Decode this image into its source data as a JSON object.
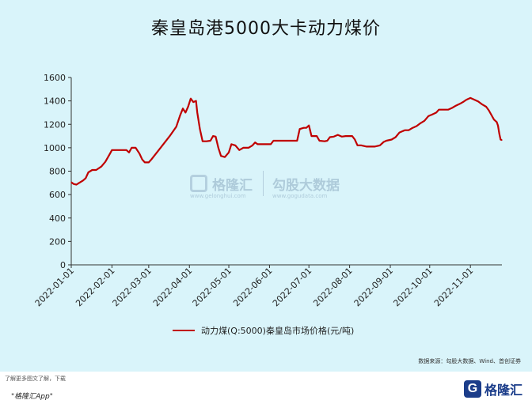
{
  "title": "秦皇岛港5000大卡动力煤价",
  "legend_label": "动力煤(Q:5000)秦皇岛市场价格(元/吨)",
  "source": "数据来源：勾股大数据、Wind、首创证券",
  "footnote": "了解更多图文了解，下载",
  "app_label": "\"格隆汇App\"",
  "brand": "格隆汇",
  "watermark": {
    "left_name": "格隆汇",
    "left_url": "www.gelonghui.com",
    "right_name": "勾股大数据",
    "right_url": "www.gogudata.com"
  },
  "colors": {
    "panel": "#d9f4fa",
    "line": "#c00000"
  },
  "chart_data": {
    "type": "line",
    "title": "秦皇岛港5000大卡动力煤价",
    "xlabel": "",
    "ylabel": "",
    "ylim": [
      0,
      1600
    ],
    "yticks": [
      0,
      200,
      400,
      600,
      800,
      1000,
      1200,
      1400,
      1600
    ],
    "xlim": [
      "2022-01-01",
      "2022-11-25"
    ],
    "xticks": [
      "2022-01-01",
      "2022-02-01",
      "2022-03-01",
      "2022-04-01",
      "2022-05-01",
      "2022-06-01",
      "2022-07-01",
      "2022-08-01",
      "2022-09-01",
      "2022-10-01",
      "2022-11-01"
    ],
    "grid": false,
    "legend_position": "bottom",
    "series": [
      {
        "name": "动力煤(Q:5000)秦皇岛市场价格(元/吨)",
        "points": [
          [
            "2022-01-01",
            705
          ],
          [
            "2022-01-03",
            690
          ],
          [
            "2022-01-05",
            685
          ],
          [
            "2022-01-07",
            700
          ],
          [
            "2022-01-10",
            720
          ],
          [
            "2022-01-12",
            740
          ],
          [
            "2022-01-14",
            790
          ],
          [
            "2022-01-17",
            810
          ],
          [
            "2022-01-20",
            810
          ],
          [
            "2022-01-24",
            840
          ],
          [
            "2022-01-27",
            880
          ],
          [
            "2022-01-30",
            940
          ],
          [
            "2022-02-01",
            980
          ],
          [
            "2022-02-05",
            980
          ],
          [
            "2022-02-09",
            980
          ],
          [
            "2022-02-12",
            980
          ],
          [
            "2022-02-14",
            960
          ],
          [
            "2022-02-16",
            1000
          ],
          [
            "2022-02-19",
            1000
          ],
          [
            "2022-02-22",
            950
          ],
          [
            "2022-02-24",
            900
          ],
          [
            "2022-02-26",
            875
          ],
          [
            "2022-03-01",
            875
          ],
          [
            "2022-03-03",
            900
          ],
          [
            "2022-03-10",
            1000
          ],
          [
            "2022-03-17",
            1100
          ],
          [
            "2022-03-22",
            1180
          ],
          [
            "2022-03-25",
            1280
          ],
          [
            "2022-03-27",
            1335
          ],
          [
            "2022-03-29",
            1300
          ],
          [
            "2022-03-31",
            1350
          ],
          [
            "2022-04-02",
            1420
          ],
          [
            "2022-04-04",
            1390
          ],
          [
            "2022-04-06",
            1400
          ],
          [
            "2022-04-07",
            1300
          ],
          [
            "2022-04-09",
            1160
          ],
          [
            "2022-04-11",
            1055
          ],
          [
            "2022-04-14",
            1055
          ],
          [
            "2022-04-17",
            1060
          ],
          [
            "2022-04-19",
            1100
          ],
          [
            "2022-04-21",
            1095
          ],
          [
            "2022-04-23",
            1000
          ],
          [
            "2022-04-25",
            930
          ],
          [
            "2022-04-28",
            920
          ],
          [
            "2022-05-01",
            960
          ],
          [
            "2022-05-03",
            1030
          ],
          [
            "2022-05-06",
            1020
          ],
          [
            "2022-05-09",
            980
          ],
          [
            "2022-05-12",
            1000
          ],
          [
            "2022-05-16",
            1000
          ],
          [
            "2022-05-19",
            1020
          ],
          [
            "2022-05-21",
            1045
          ],
          [
            "2022-05-23",
            1030
          ],
          [
            "2022-05-28",
            1030
          ],
          [
            "2022-06-02",
            1030
          ],
          [
            "2022-06-04",
            1060
          ],
          [
            "2022-06-10",
            1060
          ],
          [
            "2022-06-17",
            1060
          ],
          [
            "2022-06-22",
            1060
          ],
          [
            "2022-06-24",
            1160
          ],
          [
            "2022-06-27",
            1170
          ],
          [
            "2022-06-29",
            1170
          ],
          [
            "2022-07-01",
            1190
          ],
          [
            "2022-07-03",
            1100
          ],
          [
            "2022-07-07",
            1100
          ],
          [
            "2022-07-09",
            1060
          ],
          [
            "2022-07-13",
            1055
          ],
          [
            "2022-07-15",
            1060
          ],
          [
            "2022-07-17",
            1090
          ],
          [
            "2022-07-20",
            1095
          ],
          [
            "2022-07-23",
            1110
          ],
          [
            "2022-07-26",
            1095
          ],
          [
            "2022-07-29",
            1100
          ],
          [
            "2022-08-01",
            1100
          ],
          [
            "2022-08-03",
            1100
          ],
          [
            "2022-08-05",
            1070
          ],
          [
            "2022-08-07",
            1020
          ],
          [
            "2022-08-10",
            1020
          ],
          [
            "2022-08-14",
            1010
          ],
          [
            "2022-08-20",
            1010
          ],
          [
            "2022-08-24",
            1020
          ],
          [
            "2022-08-27",
            1050
          ],
          [
            "2022-08-29",
            1060
          ],
          [
            "2022-09-02",
            1070
          ],
          [
            "2022-09-05",
            1090
          ],
          [
            "2022-09-08",
            1130
          ],
          [
            "2022-09-12",
            1150
          ],
          [
            "2022-09-15",
            1150
          ],
          [
            "2022-09-18",
            1170
          ],
          [
            "2022-09-21",
            1185
          ],
          [
            "2022-09-24",
            1210
          ],
          [
            "2022-09-27",
            1230
          ],
          [
            "2022-09-30",
            1270
          ],
          [
            "2022-10-03",
            1285
          ],
          [
            "2022-10-06",
            1300
          ],
          [
            "2022-10-08",
            1325
          ],
          [
            "2022-10-12",
            1325
          ],
          [
            "2022-10-15",
            1325
          ],
          [
            "2022-10-18",
            1340
          ],
          [
            "2022-10-21",
            1360
          ],
          [
            "2022-10-24",
            1375
          ],
          [
            "2022-10-27",
            1395
          ],
          [
            "2022-10-29",
            1410
          ],
          [
            "2022-11-01",
            1425
          ],
          [
            "2022-11-04",
            1410
          ],
          [
            "2022-11-07",
            1395
          ],
          [
            "2022-11-10",
            1370
          ],
          [
            "2022-11-13",
            1350
          ],
          [
            "2022-11-15",
            1320
          ],
          [
            "2022-11-17",
            1280
          ],
          [
            "2022-11-19",
            1240
          ],
          [
            "2022-11-21",
            1220
          ],
          [
            "2022-11-22",
            1190
          ],
          [
            "2022-11-23",
            1120
          ],
          [
            "2022-11-24",
            1070
          ],
          [
            "2022-11-25",
            1065
          ]
        ]
      }
    ]
  }
}
